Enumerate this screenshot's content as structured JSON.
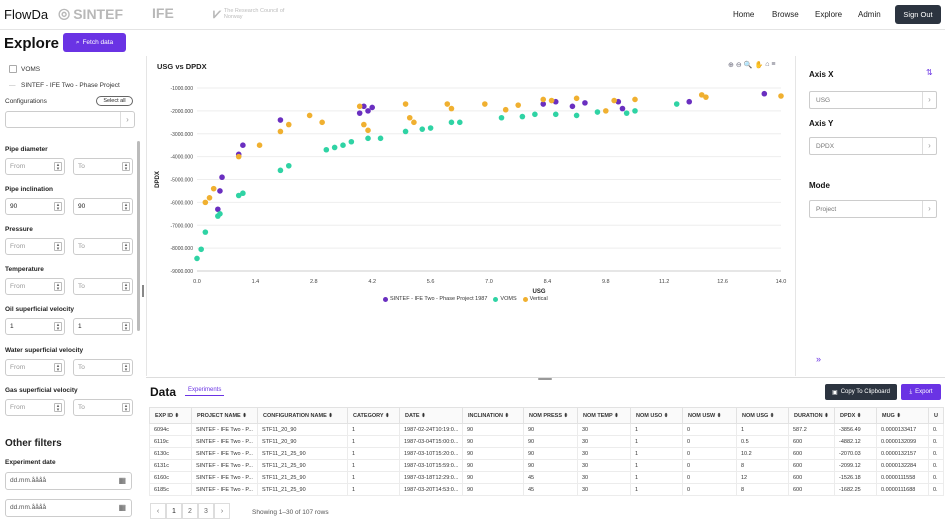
{
  "nav": {
    "brand": "FlowDa",
    "logos": [
      "SINTEF",
      "IFE",
      "The Research Council of Norway"
    ],
    "links": [
      "Home",
      "Browse",
      "Explore",
      "Admin"
    ],
    "signout": "Sign Out"
  },
  "left": {
    "title": "Explore",
    "fetch_label": "Fetch data",
    "voms_label": "VOMS",
    "project_label": "SINTEF - IFE Two - Phase Project",
    "configurations_label": "Configurations",
    "select_all": "Select all",
    "filters": [
      {
        "label": "Pipe diameter",
        "from": "",
        "to": "",
        "from_ph": "From",
        "to_ph": "To"
      },
      {
        "label": "Pipe inclination",
        "from": "90",
        "to": "90",
        "from_ph": "From",
        "to_ph": "To"
      },
      {
        "label": "Pressure",
        "from": "",
        "to": "",
        "from_ph": "From",
        "to_ph": "To"
      },
      {
        "label": "Temperature",
        "from": "",
        "to": "",
        "from_ph": "From",
        "to_ph": "To"
      },
      {
        "label": "Oil superficial velocity",
        "from": "1",
        "to": "1",
        "from_ph": "From",
        "to_ph": "To"
      },
      {
        "label": "Water superficial velocity",
        "from": "",
        "to": "",
        "from_ph": "From",
        "to_ph": "To"
      },
      {
        "label": "Gas superficial velocity",
        "from": "",
        "to": "",
        "from_ph": "From",
        "to_ph": "To"
      }
    ],
    "other_filters": "Other filters",
    "experiment_date": "Experiment date",
    "date_placeholder": "dd.mm.åååå"
  },
  "right": {
    "axis_x_label": "Axis X",
    "axis_x_value": "USG",
    "axis_y_label": "Axis Y",
    "axis_y_value": "DPDX",
    "mode_label": "Mode",
    "mode_value": "Project",
    "collapse_icon": "»"
  },
  "chart_data": {
    "type": "scatter",
    "title": "USG vs DPDX",
    "xlabel": "USG",
    "ylabel": "DPDX",
    "xlim": [
      0,
      14
    ],
    "ylim": [
      -9000,
      -1000
    ],
    "xticks": [
      "0.0",
      "1.4",
      "2.8",
      "4.2",
      "5.6",
      "7.0",
      "8.4",
      "9.8",
      "11.2",
      "12.6",
      "14.0"
    ],
    "yticks": [
      "-1000.000",
      "-2000.000",
      "-3000.000",
      "-4000.000",
      "-5000.000",
      "-6000.000",
      "-7000.000",
      "-8000.000",
      "-9000.000"
    ],
    "legend_position": "bottom",
    "grid": true,
    "series": [
      {
        "name": "SINTEF - IFE Two - Phase Project 1987",
        "color": "#6a2fc0",
        "points": [
          [
            0.5,
            -6300
          ],
          [
            0.55,
            -5500
          ],
          [
            0.6,
            -4900
          ],
          [
            1.0,
            -3900
          ],
          [
            1.1,
            -3500
          ],
          [
            2.0,
            -2400
          ],
          [
            3.9,
            -2100
          ],
          [
            4.0,
            -1800
          ],
          [
            4.1,
            -2000
          ],
          [
            4.2,
            -1850
          ],
          [
            8.3,
            -1700
          ],
          [
            8.6,
            -1600
          ],
          [
            9.0,
            -1800
          ],
          [
            9.3,
            -1650
          ],
          [
            10.1,
            -1600
          ],
          [
            10.2,
            -1900
          ],
          [
            11.8,
            -1600
          ],
          [
            13.6,
            -1250
          ]
        ]
      },
      {
        "name": "VOMS",
        "color": "#2fd3a4",
        "points": [
          [
            0.0,
            -8450
          ],
          [
            0.1,
            -8050
          ],
          [
            0.2,
            -7300
          ],
          [
            0.5,
            -6600
          ],
          [
            0.55,
            -6500
          ],
          [
            1.0,
            -5700
          ],
          [
            1.1,
            -5600
          ],
          [
            2.0,
            -4600
          ],
          [
            2.2,
            -4400
          ],
          [
            3.1,
            -3700
          ],
          [
            3.3,
            -3600
          ],
          [
            3.5,
            -3500
          ],
          [
            3.7,
            -3350
          ],
          [
            4.1,
            -3200
          ],
          [
            4.4,
            -3200
          ],
          [
            5.0,
            -2900
          ],
          [
            5.4,
            -2800
          ],
          [
            5.6,
            -2750
          ],
          [
            6.1,
            -2500
          ],
          [
            6.3,
            -2500
          ],
          [
            7.3,
            -2300
          ],
          [
            7.8,
            -2250
          ],
          [
            8.1,
            -2150
          ],
          [
            8.6,
            -2150
          ],
          [
            9.1,
            -2200
          ],
          [
            9.6,
            -2050
          ],
          [
            10.3,
            -2100
          ],
          [
            10.5,
            -2000
          ],
          [
            11.5,
            -1700
          ]
        ]
      },
      {
        "name": "Vertical",
        "color": "#f0b030",
        "points": [
          [
            0.2,
            -6000
          ],
          [
            0.3,
            -5800
          ],
          [
            0.4,
            -5400
          ],
          [
            1.0,
            -4000
          ],
          [
            1.5,
            -3500
          ],
          [
            2.0,
            -2900
          ],
          [
            2.2,
            -2600
          ],
          [
            2.7,
            -2200
          ],
          [
            3.0,
            -2500
          ],
          [
            3.9,
            -1800
          ],
          [
            4.0,
            -2600
          ],
          [
            4.1,
            -2850
          ],
          [
            5.0,
            -1700
          ],
          [
            5.1,
            -2300
          ],
          [
            5.2,
            -2500
          ],
          [
            6.0,
            -1700
          ],
          [
            6.1,
            -1900
          ],
          [
            6.9,
            -1700
          ],
          [
            7.4,
            -1950
          ],
          [
            7.7,
            -1750
          ],
          [
            8.3,
            -1500
          ],
          [
            8.5,
            -1550
          ],
          [
            9.1,
            -1450
          ],
          [
            9.8,
            -2000
          ],
          [
            10.0,
            -1550
          ],
          [
            10.5,
            -1500
          ],
          [
            12.1,
            -1300
          ],
          [
            12.2,
            -1400
          ],
          [
            14.0,
            -1350
          ]
        ]
      }
    ]
  },
  "chart_tools": [
    "⊕",
    "⊖",
    "🔍",
    "✋",
    "⌂",
    "≡"
  ],
  "data": {
    "title": "Data",
    "tab": "Experiments",
    "copy_label": "Copy To Clipboard",
    "export_label": "Export",
    "columns": [
      "EXP ID",
      "PROJECT NAME",
      "CONFIGURATION NAME",
      "CATEGORY",
      "DATE",
      "INCLINATION",
      "NOM PRESS",
      "NOM TEMP",
      "NOM USO",
      "NOM USW",
      "NOM USG",
      "DURATION",
      "DPDX",
      "MUG",
      "U"
    ],
    "rows": [
      [
        "6094c",
        "SINTEF - IFE Two - P...",
        "STF11_20_90",
        "1",
        "1987-02-24T10:19:0...",
        "90",
        "90",
        "30",
        "1",
        "0",
        "1",
        "587.2",
        "-3856.49",
        "0.0000133417",
        "0."
      ],
      [
        "6119c",
        "SINTEF - IFE Two - P...",
        "STF11_20_90",
        "1",
        "1987-03-04T15:00:0...",
        "90",
        "90",
        "30",
        "1",
        "0",
        "0.5",
        "600",
        "-4882.12",
        "0.0000132099",
        "0."
      ],
      [
        "6130c",
        "SINTEF - IFE Two - P...",
        "STF11_21_25_90",
        "1",
        "1987-03-10T15:20:0...",
        "90",
        "90",
        "30",
        "1",
        "0",
        "10.2",
        "600",
        "-2070.03",
        "0.0000132157",
        "0."
      ],
      [
        "6131c",
        "SINTEF - IFE Two - P...",
        "STF11_21_25_90",
        "1",
        "1987-03-10T15:59:0...",
        "90",
        "90",
        "30",
        "1",
        "0",
        "8",
        "600",
        "-2099.12",
        "0.0000132284",
        "0."
      ],
      [
        "6160c",
        "SINTEF - IFE Two - P...",
        "STF11_21_25_90",
        "1",
        "1987-03-18T12:29:0...",
        "90",
        "45",
        "30",
        "1",
        "0",
        "12",
        "600",
        "-1526.18",
        "0.0000111558",
        "0."
      ],
      [
        "6185c",
        "SINTEF - IFE Two - P...",
        "STF11_21_25_90",
        "1",
        "1987-03-20T14:53:0...",
        "90",
        "45",
        "30",
        "1",
        "0",
        "8",
        "600",
        "-1682.25",
        "0.0000111688",
        "0."
      ]
    ],
    "pager": [
      "‹",
      "1",
      "2",
      "3",
      "›"
    ],
    "showing": "Showing 1–30 of 107 rows"
  }
}
